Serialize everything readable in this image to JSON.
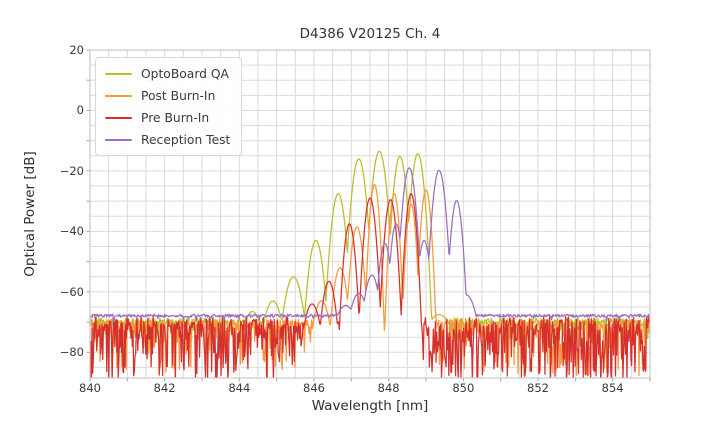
{
  "title": "D4386 V20125 Ch. 4",
  "axes": {
    "xlabel": "Wavelength [nm]",
    "ylabel": "Optical Power [dB]",
    "x_tick_values": [
      840,
      842,
      844,
      846,
      848,
      850,
      852,
      854
    ],
    "x_tick_labels": [
      "840",
      "842",
      "844",
      "846",
      "848",
      "850",
      "852",
      "854"
    ],
    "y_tick_values": [
      20,
      0,
      -20,
      -40,
      -60,
      -80
    ],
    "y_tick_labels": [
      "20",
      "0",
      "−20",
      "−40",
      "−60",
      "−80"
    ]
  },
  "colors": {
    "background": "#ffffff",
    "grid": "#dbdbdb",
    "frame": "#c9c9c9",
    "tick_mark": "#a5a5a5",
    "text": "#343434"
  },
  "chart_data": {
    "type": "line",
    "title": "D4386 V20125 Ch. 4",
    "xlabel": "Wavelength [nm]",
    "ylabel": "Optical Power [dB]",
    "xlim": [
      840,
      855
    ],
    "ylim": [
      -88.5,
      20
    ],
    "x_grid_step_nm": 0.5,
    "y_grid_step_db": 5,
    "grid": true,
    "legend_position": "upper left",
    "description": "Optical spectra (VCSEL multimode peaks over a noise floor) at four QA stages",
    "series": [
      {
        "name": "OptoBoard QA",
        "color": "#bcbd2b",
        "noise_floor_db": -69.9,
        "noise": {
          "jitter_db": 1.2,
          "spike_prob": 0.35,
          "spike_max_db": 7
        },
        "mode_peaks_nm_db": [
          [
            844.35,
            -66.5
          ],
          [
            844.9,
            -63
          ],
          [
            845.45,
            -55
          ],
          [
            846.05,
            -43
          ],
          [
            846.65,
            -27.5
          ],
          [
            847.2,
            -16
          ],
          [
            847.75,
            -13.5
          ],
          [
            848.3,
            -15.2
          ],
          [
            848.78,
            -14.3
          ],
          [
            849.35,
            -67.5
          ]
        ],
        "mode_width_nm": [
          0.1,
          0.09,
          0.08,
          0.06,
          0.055,
          0.055,
          0.055,
          0.05,
          0.05,
          0.15
        ]
      },
      {
        "name": "Post Burn-In",
        "color": "#f8983a",
        "noise_floor_db": -70.6,
        "noise": {
          "jitter_db": 1.6,
          "spike_prob": 0.55,
          "spike_max_db": 17
        },
        "mode_peaks_nm_db": [
          [
            846.2,
            -63
          ],
          [
            846.7,
            -52
          ],
          [
            847.15,
            -38.5
          ],
          [
            847.62,
            -24.5
          ],
          [
            848.15,
            -27.5
          ],
          [
            848.6,
            -31
          ],
          [
            849.0,
            -26.2
          ]
        ],
        "mode_width_nm": [
          0.08,
          0.06,
          0.05,
          0.038,
          0.038,
          0.038,
          0.04
        ]
      },
      {
        "name": "Pre Burn-In",
        "color": "#d62f2c",
        "noise_floor_db": -70.0,
        "noise": {
          "jitter_db": 1.9,
          "spike_prob": 0.82,
          "spike_max_db": 20
        },
        "mode_peaks_nm_db": [
          [
            845.95,
            -64
          ],
          [
            846.4,
            -56.5
          ],
          [
            846.95,
            -37.5
          ],
          [
            847.5,
            -29
          ],
          [
            848.05,
            -29.5
          ],
          [
            848.6,
            -27.5
          ]
        ],
        "mode_width_nm": [
          0.08,
          0.06,
          0.046,
          0.046,
          0.046,
          0.042
        ]
      },
      {
        "name": "Reception Test",
        "color": "#9a6fc0",
        "noise_floor_db": -67.9,
        "noise": {
          "jitter_db": 0.5,
          "spike_prob": 0.05,
          "spike_max_db": 2
        },
        "mode_peaks_nm_db": [
          [
            846.85,
            -64.5
          ],
          [
            847.2,
            -60.5
          ],
          [
            847.55,
            -54.5
          ],
          [
            847.9,
            -44
          ],
          [
            848.2,
            -37.5
          ],
          [
            848.55,
            -19
          ],
          [
            848.95,
            -43
          ],
          [
            849.35,
            -19.8
          ],
          [
            849.82,
            -29.8
          ],
          [
            850.08,
            -61
          ]
        ],
        "mode_width_nm": [
          0.12,
          0.09,
          0.07,
          0.05,
          0.045,
          0.05,
          0.05,
          0.05,
          0.045,
          0.1
        ]
      }
    ]
  }
}
